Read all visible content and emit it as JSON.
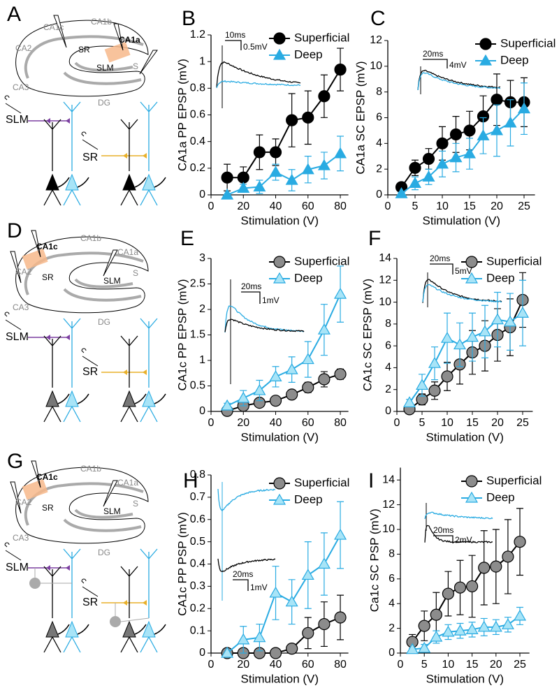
{
  "chart_data": [
    {
      "type": "line",
      "panel": "B",
      "ylabel": "CA1a PP EPSP (mV)",
      "xlabel": "Stimulation (V)",
      "x": [
        10,
        20,
        30,
        40,
        50,
        60,
        70,
        80
      ],
      "xlim": [
        0,
        85
      ],
      "xticks": [
        0,
        20,
        40,
        60,
        80
      ],
      "ylim": [
        0,
        1.2
      ],
      "yticks": [
        0,
        0.2,
        0.4,
        0.6,
        0.8,
        1,
        1.2
      ],
      "inset_labels": [
        "10ms",
        "0.5mV"
      ],
      "series": [
        {
          "name": "Superficial",
          "color": "#000000",
          "fill": "#000000",
          "marker": "circle",
          "values": [
            0.13,
            0.13,
            0.32,
            0.32,
            0.56,
            0.58,
            0.74,
            0.94
          ],
          "errors": [
            0.1,
            0.08,
            0.13,
            0.1,
            0.2,
            0.2,
            0.16,
            0.16
          ]
        },
        {
          "name": "Deep",
          "color": "#29abe2",
          "fill": "#29abe2",
          "marker": "triangle",
          "values": [
            0,
            0.05,
            0.06,
            0.17,
            0.11,
            0.19,
            0.22,
            0.31
          ],
          "errors": [
            0,
            0.03,
            0.05,
            0.06,
            0.08,
            0.1,
            0.1,
            0.13
          ]
        }
      ]
    },
    {
      "type": "line",
      "panel": "C",
      "ylabel": "CA1a SC EPSP (mV)",
      "xlabel": "Stimulation (V)",
      "x": [
        2.5,
        5,
        7.5,
        10,
        12.5,
        15,
        17.5,
        20,
        22.5,
        25
      ],
      "xlim": [
        0,
        27
      ],
      "xticks": [
        0,
        5,
        10,
        15,
        20,
        25
      ],
      "ylim": [
        0,
        12
      ],
      "yticks": [
        0,
        2,
        4,
        6,
        8,
        10,
        12
      ],
      "inset_labels": [
        "20ms",
        "4mV"
      ],
      "series": [
        {
          "name": "Superficial",
          "color": "#000000",
          "fill": "#000000",
          "marker": "circle",
          "values": [
            0.6,
            2.1,
            2.8,
            4.0,
            4.7,
            5.0,
            6.1,
            7.4,
            7.2,
            7.2
          ],
          "errors": [
            0.3,
            0.6,
            0.8,
            1.3,
            1.4,
            1.5,
            1.6,
            2.0,
            1.7,
            1.9
          ]
        },
        {
          "name": "Deep",
          "color": "#29abe2",
          "fill": "#29abe2",
          "marker": "triangle",
          "values": [
            0.1,
            0.9,
            1.4,
            2.4,
            2.9,
            3.2,
            4.6,
            5.0,
            5.6,
            6.7
          ],
          "errors": [
            0.1,
            0.5,
            0.6,
            1.0,
            1.1,
            1.2,
            1.4,
            2.0,
            1.8,
            2.0
          ]
        }
      ]
    },
    {
      "type": "line",
      "panel": "E",
      "ylabel": "CA1c PP EPSP (mV)",
      "xlabel": "Stimulation (V)",
      "x": [
        10,
        20,
        30,
        40,
        50,
        60,
        70,
        80
      ],
      "xlim": [
        0,
        85
      ],
      "xticks": [
        0,
        20,
        40,
        60,
        80
      ],
      "ylim": [
        0,
        3
      ],
      "yticks": [
        0,
        0.5,
        1,
        1.5,
        2,
        2.5,
        3
      ],
      "inset_labels": [
        "20ms",
        "1mV"
      ],
      "series": [
        {
          "name": "Superficial",
          "color": "#000000",
          "fill": "#8c8c8c",
          "marker": "circle",
          "values": [
            0.01,
            0.11,
            0.17,
            0.21,
            0.33,
            0.47,
            0.63,
            0.73
          ],
          "errors": [
            0.01,
            0.03,
            0.04,
            0.05,
            0.08,
            0.1,
            0.15,
            0.1
          ]
        },
        {
          "name": "Deep",
          "color": "#29abe2",
          "fill": "#a8e4f7",
          "marker": "triangle",
          "values": [
            0.11,
            0.26,
            0.41,
            0.68,
            0.82,
            1.02,
            1.6,
            2.3
          ],
          "errors": [
            0.05,
            0.15,
            0.2,
            0.2,
            0.25,
            0.35,
            0.5,
            0.55
          ]
        }
      ]
    },
    {
      "type": "line",
      "panel": "F",
      "ylabel": "CA1c SC EPSP (mV)",
      "xlabel": "Stimulation (V)",
      "x": [
        2.5,
        5,
        7.5,
        10,
        12.5,
        15,
        17.5,
        20,
        22.5,
        25
      ],
      "xlim": [
        0,
        27
      ],
      "xticks": [
        0,
        5,
        10,
        15,
        20,
        25
      ],
      "ylim": [
        0,
        14
      ],
      "yticks": [
        0,
        2,
        4,
        6,
        8,
        10,
        12,
        14
      ],
      "inset_labels": [
        "20ms",
        "5mV"
      ],
      "series": [
        {
          "name": "Superficial",
          "color": "#000000",
          "fill": "#8c8c8c",
          "marker": "circle",
          "values": [
            0.2,
            1.1,
            1.9,
            3.2,
            4.3,
            5.4,
            6.0,
            7.0,
            7.7,
            10.2
          ],
          "errors": [
            0.1,
            0.5,
            0.8,
            1.3,
            1.8,
            2.0,
            2.3,
            2.4,
            2.6,
            2.5
          ]
        },
        {
          "name": "Deep",
          "color": "#29abe2",
          "fill": "#a8e4f7",
          "marker": "triangle",
          "values": [
            0.8,
            2.4,
            4.4,
            6.7,
            6.1,
            6.8,
            7.3,
            8.4,
            8.2,
            9.0
          ],
          "errors": [
            0.3,
            1.0,
            1.5,
            2.3,
            2.0,
            2.2,
            2.4,
            2.5,
            2.6,
            3.0
          ]
        }
      ]
    },
    {
      "type": "line",
      "panel": "H",
      "ylabel": "CA1c PP PSP (mV)",
      "xlabel": "Stimulation (V)",
      "x": [
        10,
        20,
        30,
        40,
        50,
        60,
        70,
        80
      ],
      "xlim": [
        0,
        85
      ],
      "xticks": [
        0,
        20,
        40,
        60,
        80
      ],
      "ylim": [
        0,
        0.8
      ],
      "yticks": [
        0,
        0.1,
        0.2,
        0.3,
        0.4,
        0.5,
        0.6,
        0.7,
        0.8
      ],
      "inset_labels": [
        "20ms",
        "1mV"
      ],
      "series": [
        {
          "name": "Superficial",
          "color": "#000000",
          "fill": "#8c8c8c",
          "marker": "circle",
          "values": [
            0,
            0,
            0,
            0,
            0.02,
            0.09,
            0.13,
            0.16
          ],
          "errors": [
            0,
            0,
            0,
            0,
            0.02,
            0.07,
            0.1,
            0.1
          ]
        },
        {
          "name": "Deep",
          "color": "#29abe2",
          "fill": "#a8e4f7",
          "marker": "triangle",
          "values": [
            0,
            0.06,
            0.07,
            0.27,
            0.23,
            0.35,
            0.4,
            0.53
          ],
          "errors": [
            0,
            0.06,
            0.06,
            0.12,
            0.1,
            0.15,
            0.14,
            0.15
          ]
        }
      ]
    },
    {
      "type": "line",
      "panel": "I",
      "ylabel": "Ca1c SC PSP (mV)",
      "xlabel": "Stimulation (V)",
      "x": [
        2.5,
        5,
        7.5,
        10,
        12.5,
        15,
        17.5,
        20,
        22.5,
        25
      ],
      "xlim": [
        0,
        27
      ],
      "xticks": [
        0,
        5,
        10,
        15,
        20,
        25
      ],
      "ylim": [
        0,
        15
      ],
      "yticks": [
        0,
        2,
        4,
        6,
        8,
        10,
        12,
        14
      ],
      "inset_labels": [
        "20ms",
        "2mV"
      ],
      "series": [
        {
          "name": "Superficial",
          "color": "#000000",
          "fill": "#8c8c8c",
          "marker": "circle",
          "values": [
            0.9,
            2.2,
            3.1,
            4.8,
            5.3,
            5.4,
            6.9,
            7.0,
            7.8,
            9.0
          ],
          "errors": [
            0.6,
            1.2,
            1.8,
            1.8,
            2.2,
            2.5,
            3.0,
            3.0,
            3.0,
            2.7
          ]
        },
        {
          "name": "Deep",
          "color": "#29abe2",
          "fill": "#a8e4f7",
          "marker": "triangle",
          "values": [
            0.3,
            0.4,
            1.3,
            1.7,
            1.8,
            1.9,
            2.1,
            2.1,
            2.3,
            3.0
          ],
          "errors": [
            0.1,
            0.3,
            0.5,
            0.6,
            0.6,
            0.6,
            0.7,
            0.6,
            0.6,
            0.7
          ]
        }
      ]
    }
  ],
  "diagrams": [
    {
      "panel": "A",
      "labels": [
        "CA1c",
        "CA1b",
        "CA1a",
        "CA2",
        "SR",
        "S",
        "SLM",
        "CA3",
        "DG",
        "SLM",
        "SR"
      ],
      "highlight": 2
    },
    {
      "panel": "D",
      "labels": [
        "CA1c",
        "CA1b",
        "CA1a",
        "CA2",
        "SR",
        "S",
        "SLM",
        "CA3",
        "DG",
        "SLM",
        "SR"
      ],
      "highlight": 0
    },
    {
      "panel": "G",
      "labels": [
        "CA1c",
        "CA1b",
        "CA1a",
        "CA2",
        "SR",
        "S",
        "SLM",
        "CA3",
        "DG",
        "SLM",
        "SR"
      ],
      "highlight": 0
    }
  ]
}
